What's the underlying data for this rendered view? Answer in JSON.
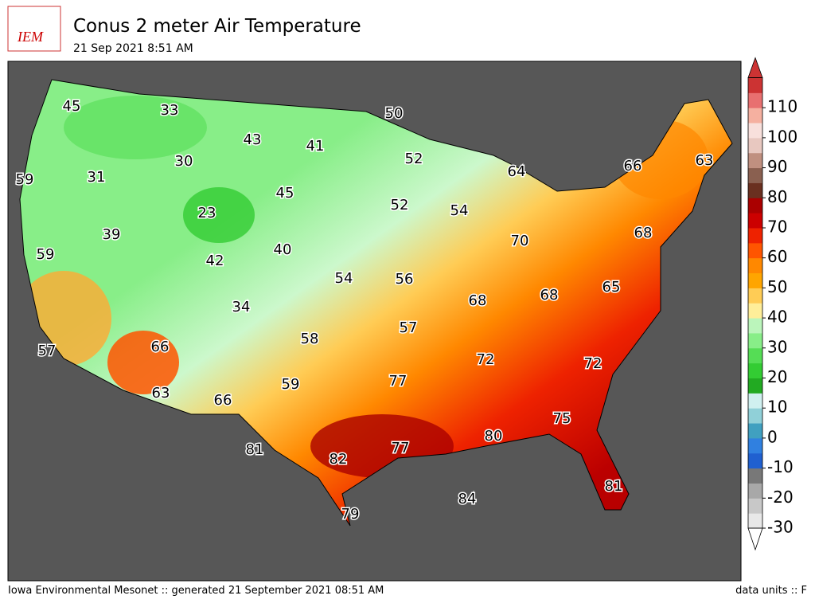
{
  "header": {
    "title": "Conus 2 meter Air Temperature",
    "subtitle": "21 Sep 2021 8:51 AM",
    "logo": "IEM"
  },
  "map": {
    "labels": [
      45,
      33,
      50,
      43,
      41,
      30,
      52,
      64,
      66,
      63,
      59,
      31,
      45,
      23,
      52,
      54,
      68,
      39,
      70,
      59,
      42,
      40,
      54,
      56,
      65,
      68,
      68,
      34,
      57,
      58,
      66,
      57,
      72,
      72,
      77,
      59,
      63,
      66,
      75,
      80,
      77,
      81,
      82,
      81,
      84,
      79
    ]
  },
  "colorbar": {
    "ticks": [
      -30,
      -20,
      -10,
      0,
      10,
      20,
      30,
      40,
      50,
      60,
      70,
      80,
      90,
      100,
      110
    ],
    "colors": [
      "#e8e8e8",
      "#c8c8c8",
      "#a8a8a8",
      "#787878",
      "#2060d0",
      "#3080e0",
      "#40a0c0",
      "#90d0d8",
      "#d0f0f0",
      "#22aa22",
      "#33cc33",
      "#55dd55",
      "#88ee88",
      "#bbf5bb",
      "#ffee99",
      "#ffcc55",
      "#ffa500",
      "#ff8800",
      "#ff5500",
      "#ee2200",
      "#cc0000",
      "#aa0000",
      "#6a3020",
      "#8a6050",
      "#c09080",
      "#e8c8c0",
      "#f8e0dc",
      "#f5b0a0",
      "#e87070",
      "#cc3333"
    ]
  },
  "footer": {
    "left": "Iowa Environmental Mesonet :: generated 21 September 2021 08:51 AM",
    "right": "data units :: F"
  }
}
